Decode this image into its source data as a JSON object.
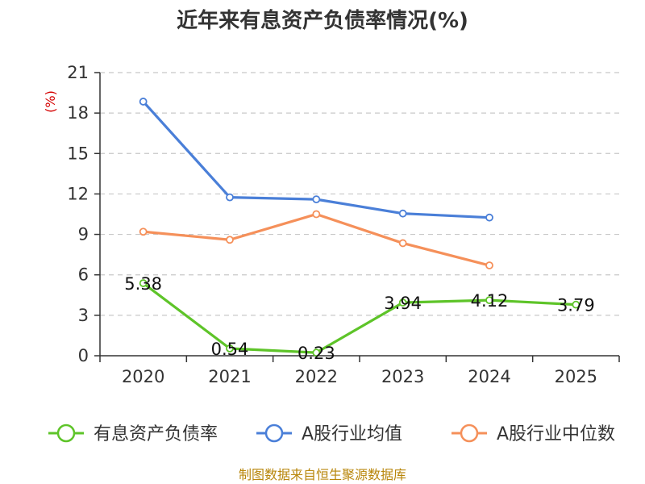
{
  "chart_data": {
    "type": "line",
    "title": "近年来有息资产负债率情况(%)",
    "ylabel": "(%)",
    "categories": [
      "2020",
      "2021",
      "2022",
      "2023",
      "2024",
      "2025"
    ],
    "ylim": [
      0,
      21
    ],
    "yticks": [
      0,
      3,
      6,
      9,
      12,
      15,
      18,
      21
    ],
    "grid": true,
    "legend_position": "bottom",
    "series": [
      {
        "name": "有息资产负债率",
        "color": "#5ec429",
        "values": [
          5.38,
          0.54,
          0.23,
          3.94,
          4.12,
          3.79
        ],
        "labels": [
          "5.38",
          "0.54",
          "0.23",
          "3.94",
          "4.12",
          "3.79"
        ]
      },
      {
        "name": "A股行业均值",
        "color": "#4a7fd8",
        "values": [
          18.85,
          11.75,
          11.6,
          10.55,
          10.25,
          null
        ]
      },
      {
        "name": "A股行业中位数",
        "color": "#f5905a",
        "values": [
          9.2,
          8.6,
          10.5,
          8.35,
          6.7,
          null
        ]
      }
    ],
    "source": "制图数据来自恒生聚源数据库"
  }
}
